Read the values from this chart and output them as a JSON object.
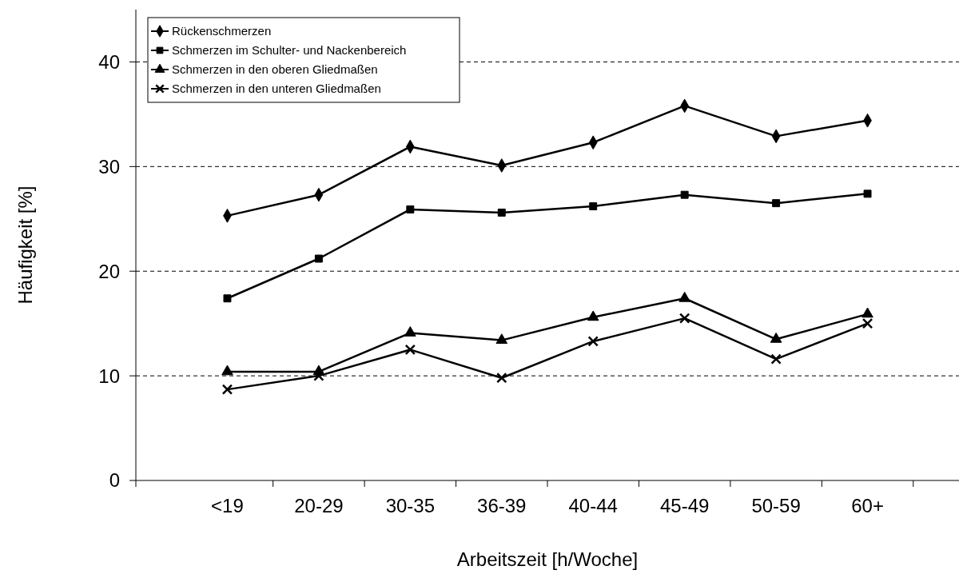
{
  "chart_data": {
    "type": "line",
    "xlabel": "Arbeitszeit [h/Woche]",
    "ylabel": "Häufigkeit [%]",
    "categories": [
      "<19",
      "20-29",
      "30-35",
      "36-39",
      "40-44",
      "45-49",
      "50-59",
      "60+"
    ],
    "series": [
      {
        "name": "Rückenschmerzen",
        "color": "#000000",
        "marker": "diamond",
        "values": [
          25.3,
          27.3,
          31.9,
          30.1,
          32.3,
          35.8,
          32.9,
          34.4
        ]
      },
      {
        "name": "Schmerzen im Schulter- und Nackenbereich",
        "color": "#000000",
        "marker": "square",
        "values": [
          17.4,
          21.2,
          25.9,
          25.6,
          26.2,
          27.3,
          26.5,
          27.4
        ]
      },
      {
        "name": "Schmerzen in den oberen Gliedmaßen",
        "color": "#000000",
        "marker": "triangle",
        "values": [
          10.4,
          10.4,
          14.1,
          13.4,
          15.6,
          17.4,
          13.5,
          15.9
        ]
      },
      {
        "name": "Schmerzen in den unteren Gliedmaßen",
        "color": "#000000",
        "marker": "cross",
        "values": [
          8.7,
          10.0,
          12.5,
          9.8,
          13.3,
          15.5,
          11.6,
          15.0
        ]
      }
    ],
    "ylim": [
      0,
      45
    ],
    "yticks": [
      0,
      10,
      20,
      30,
      40
    ],
    "grid": "y",
    "legend": "top left",
    "line_style": "solid"
  }
}
